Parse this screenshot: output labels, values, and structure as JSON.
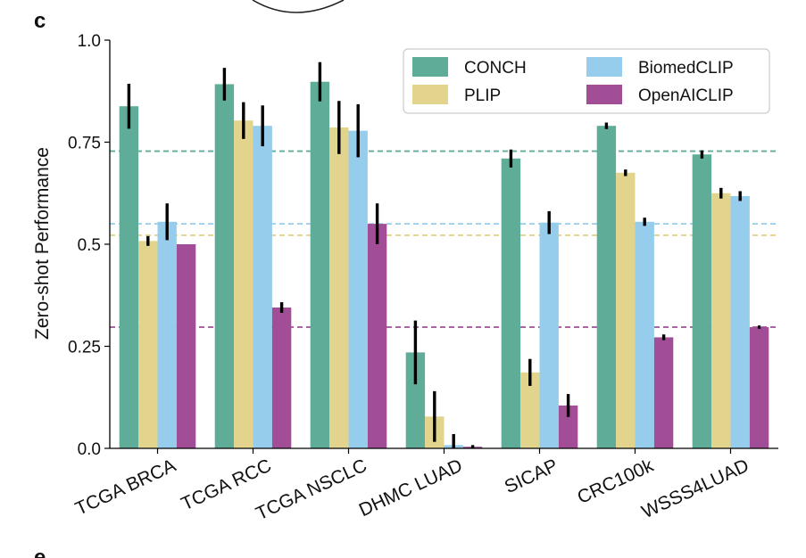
{
  "panel_label": "c",
  "next_panel_label": "e",
  "chart_data": {
    "type": "bar",
    "title": "",
    "xlabel": "",
    "ylabel": "Zero-shot Performance",
    "ylim": [
      0,
      1.0
    ],
    "yticks": [
      "0.0",
      "0.25",
      "0.5",
      "0.75",
      "1.0"
    ],
    "categories": [
      "TCGA BRCA",
      "TCGA RCC",
      "TCGA NSCLC",
      "DHMC LUAD",
      "SICAP",
      "CRC100k",
      "WSSS4LUAD"
    ],
    "series": [
      {
        "name": "CONCH",
        "color": "#5fad99",
        "values": [
          0.838,
          0.892,
          0.898,
          0.235,
          0.71,
          0.79,
          0.72
        ],
        "err": [
          0.055,
          0.04,
          0.048,
          0.078,
          0.022,
          0.008,
          0.01
        ]
      },
      {
        "name": "PLIP",
        "color": "#e2d48c",
        "values": [
          0.508,
          0.803,
          0.786,
          0.078,
          0.186,
          0.675,
          0.625
        ],
        "err": [
          0.012,
          0.045,
          0.065,
          0.062,
          0.033,
          0.008,
          0.013
        ]
      },
      {
        "name": "BiomedCLIP",
        "color": "#97cdec",
        "values": [
          0.555,
          0.79,
          0.778,
          0.008,
          0.553,
          0.555,
          0.618
        ],
        "err": [
          0.045,
          0.05,
          0.065,
          0.027,
          0.028,
          0.01,
          0.012
        ]
      },
      {
        "name": "OpenAICLIP",
        "color": "#a24e96",
        "values": [
          0.5,
          0.345,
          0.55,
          0.004,
          0.105,
          0.272,
          0.297
        ],
        "err": [
          0.0,
          0.013,
          0.05,
          0.004,
          0.028,
          0.007,
          0.004
        ]
      }
    ],
    "reference_lines": [
      {
        "series": "CONCH",
        "value": 0.728
      },
      {
        "series": "PLIP",
        "value": 0.522
      },
      {
        "series": "BiomedCLIP",
        "value": 0.55
      },
      {
        "series": "OpenAICLIP",
        "value": 0.297
      }
    ],
    "legend": {
      "placement": "top-right",
      "columns": 2
    },
    "grid": false
  }
}
